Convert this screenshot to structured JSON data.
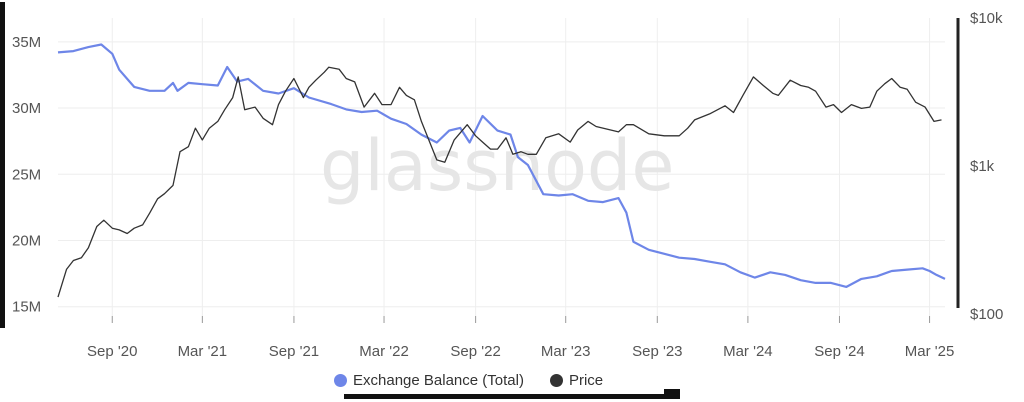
{
  "watermark": "glassnode",
  "legend": {
    "balance_label": "Exchange Balance (Total)",
    "price_label": "Price"
  },
  "colors": {
    "balance": "#6e86e8",
    "price": "#333333",
    "grid": "#eeeeee",
    "axis_line": "#222222"
  },
  "chart_data": {
    "type": "line",
    "x_tick_labels": [
      "Sep '20",
      "Mar '21",
      "Sep '21",
      "Mar '22",
      "Sep '22",
      "Mar '23",
      "Sep '23",
      "Mar '24",
      "Sep '24",
      "Mar '25"
    ],
    "y_left": {
      "tick_labels": [
        "35M",
        "30M",
        "25M",
        "20M",
        "15M"
      ],
      "ticks": [
        35,
        30,
        25,
        20,
        15
      ],
      "range": [
        14.3,
        36.8
      ]
    },
    "y_right": {
      "scale": "log",
      "tick_labels": [
        "$10k",
        "$1k",
        "$100"
      ],
      "ticks": [
        10000,
        1000,
        100
      ],
      "range": [
        100,
        10000
      ]
    },
    "grid": true,
    "legend_position": "bottom",
    "series": [
      {
        "name": "Exchange Balance (Total)",
        "axis": "left",
        "points": [
          [
            "2020-05-15",
            34.2
          ],
          [
            "2020-06-15",
            34.3
          ],
          [
            "2020-07-15",
            34.6
          ],
          [
            "2020-08-10",
            34.8
          ],
          [
            "2020-09-01",
            34.1
          ],
          [
            "2020-09-15",
            32.9
          ],
          [
            "2020-10-15",
            31.6
          ],
          [
            "2020-11-15",
            31.3
          ],
          [
            "2020-12-15",
            31.3
          ],
          [
            "2021-01-01",
            31.9
          ],
          [
            "2021-01-10",
            31.3
          ],
          [
            "2021-02-01",
            31.9
          ],
          [
            "2021-03-01",
            31.8
          ],
          [
            "2021-04-01",
            31.7
          ],
          [
            "2021-04-20",
            33.1
          ],
          [
            "2021-05-10",
            32.0
          ],
          [
            "2021-06-01",
            32.2
          ],
          [
            "2021-07-01",
            31.3
          ],
          [
            "2021-08-01",
            31.1
          ],
          [
            "2021-09-01",
            31.5
          ],
          [
            "2021-10-01",
            30.8
          ],
          [
            "2021-11-15",
            30.3
          ],
          [
            "2021-12-15",
            29.9
          ],
          [
            "2022-01-15",
            29.7
          ],
          [
            "2022-02-15",
            29.8
          ],
          [
            "2022-03-15",
            29.2
          ],
          [
            "2022-04-15",
            28.8
          ],
          [
            "2022-05-15",
            28.0
          ],
          [
            "2022-06-15",
            27.4
          ],
          [
            "2022-07-10",
            28.3
          ],
          [
            "2022-08-01",
            28.5
          ],
          [
            "2022-08-20",
            27.4
          ],
          [
            "2022-09-15",
            29.4
          ],
          [
            "2022-10-15",
            28.3
          ],
          [
            "2022-11-10",
            28.0
          ],
          [
            "2022-11-25",
            26.3
          ],
          [
            "2022-12-15",
            25.7
          ],
          [
            "2023-01-15",
            23.5
          ],
          [
            "2023-02-15",
            23.4
          ],
          [
            "2023-03-15",
            23.5
          ],
          [
            "2023-04-15",
            23.0
          ],
          [
            "2023-05-15",
            22.9
          ],
          [
            "2023-06-15",
            23.2
          ],
          [
            "2023-07-01",
            22.1
          ],
          [
            "2023-07-15",
            19.9
          ],
          [
            "2023-08-15",
            19.3
          ],
          [
            "2023-09-15",
            19.0
          ],
          [
            "2023-10-15",
            18.7
          ],
          [
            "2023-11-15",
            18.6
          ],
          [
            "2023-12-15",
            18.4
          ],
          [
            "2024-01-15",
            18.2
          ],
          [
            "2024-02-15",
            17.6
          ],
          [
            "2024-03-15",
            17.2
          ],
          [
            "2024-04-15",
            17.6
          ],
          [
            "2024-05-15",
            17.4
          ],
          [
            "2024-06-15",
            17.0
          ],
          [
            "2024-07-15",
            16.8
          ],
          [
            "2024-08-15",
            16.8
          ],
          [
            "2024-09-15",
            16.5
          ],
          [
            "2024-10-15",
            17.1
          ],
          [
            "2024-11-15",
            17.3
          ],
          [
            "2024-12-15",
            17.7
          ],
          [
            "2025-01-15",
            17.8
          ],
          [
            "2025-02-15",
            17.9
          ],
          [
            "2025-03-01",
            17.7
          ],
          [
            "2025-03-15",
            17.4
          ],
          [
            "2025-04-01",
            17.1
          ]
        ]
      },
      {
        "name": "Price",
        "axis": "right",
        "points": [
          [
            "2020-05-15",
            130
          ],
          [
            "2020-06-01",
            200
          ],
          [
            "2020-06-15",
            230
          ],
          [
            "2020-07-01",
            240
          ],
          [
            "2020-07-15",
            280
          ],
          [
            "2020-08-01",
            390
          ],
          [
            "2020-08-15",
            430
          ],
          [
            "2020-09-01",
            380
          ],
          [
            "2020-09-15",
            370
          ],
          [
            "2020-10-01",
            350
          ],
          [
            "2020-10-15",
            380
          ],
          [
            "2020-11-01",
            400
          ],
          [
            "2020-11-15",
            480
          ],
          [
            "2020-12-01",
            600
          ],
          [
            "2020-12-15",
            650
          ],
          [
            "2021-01-01",
            740
          ],
          [
            "2021-01-15",
            1250
          ],
          [
            "2021-02-01",
            1350
          ],
          [
            "2021-02-15",
            1800
          ],
          [
            "2021-03-01",
            1500
          ],
          [
            "2021-03-15",
            1800
          ],
          [
            "2021-04-01",
            2000
          ],
          [
            "2021-04-15",
            2400
          ],
          [
            "2021-05-01",
            2900
          ],
          [
            "2021-05-12",
            4000
          ],
          [
            "2021-05-25",
            2400
          ],
          [
            "2021-06-15",
            2500
          ],
          [
            "2021-07-01",
            2100
          ],
          [
            "2021-07-20",
            1900
          ],
          [
            "2021-08-01",
            2600
          ],
          [
            "2021-08-15",
            3200
          ],
          [
            "2021-09-01",
            3900
          ],
          [
            "2021-09-20",
            2900
          ],
          [
            "2021-10-01",
            3400
          ],
          [
            "2021-10-15",
            3800
          ],
          [
            "2021-11-01",
            4300
          ],
          [
            "2021-11-10",
            4650
          ],
          [
            "2021-12-01",
            4500
          ],
          [
            "2021-12-15",
            3900
          ],
          [
            "2022-01-01",
            3700
          ],
          [
            "2022-01-20",
            2500
          ],
          [
            "2022-02-10",
            3100
          ],
          [
            "2022-02-25",
            2600
          ],
          [
            "2022-03-15",
            2600
          ],
          [
            "2022-04-01",
            3400
          ],
          [
            "2022-04-15",
            3000
          ],
          [
            "2022-05-01",
            2800
          ],
          [
            "2022-05-15",
            2000
          ],
          [
            "2022-06-15",
            1100
          ],
          [
            "2022-07-01",
            1060
          ],
          [
            "2022-07-20",
            1500
          ],
          [
            "2022-08-15",
            1900
          ],
          [
            "2022-09-01",
            1600
          ],
          [
            "2022-09-15",
            1450
          ],
          [
            "2022-10-01",
            1300
          ],
          [
            "2022-10-15",
            1300
          ],
          [
            "2022-11-01",
            1550
          ],
          [
            "2022-11-15",
            1200
          ],
          [
            "2022-12-01",
            1250
          ],
          [
            "2022-12-15",
            1200
          ],
          [
            "2023-01-01",
            1200
          ],
          [
            "2023-01-20",
            1550
          ],
          [
            "2023-02-15",
            1650
          ],
          [
            "2023-03-10",
            1450
          ],
          [
            "2023-03-25",
            1750
          ],
          [
            "2023-04-15",
            2000
          ],
          [
            "2023-05-01",
            1850
          ],
          [
            "2023-06-15",
            1700
          ],
          [
            "2023-07-01",
            1900
          ],
          [
            "2023-07-15",
            1900
          ],
          [
            "2023-08-15",
            1650
          ],
          [
            "2023-09-15",
            1600
          ],
          [
            "2023-10-15",
            1600
          ],
          [
            "2023-11-01",
            1800
          ],
          [
            "2023-11-15",
            2050
          ],
          [
            "2023-12-15",
            2250
          ],
          [
            "2024-01-15",
            2550
          ],
          [
            "2024-02-01",
            2300
          ],
          [
            "2024-02-20",
            3000
          ],
          [
            "2024-03-12",
            4000
          ],
          [
            "2024-04-01",
            3500
          ],
          [
            "2024-04-20",
            3100
          ],
          [
            "2024-05-01",
            3000
          ],
          [
            "2024-05-25",
            3800
          ],
          [
            "2024-06-15",
            3500
          ],
          [
            "2024-07-01",
            3400
          ],
          [
            "2024-07-15",
            3200
          ],
          [
            "2024-08-05",
            2500
          ],
          [
            "2024-08-20",
            2600
          ],
          [
            "2024-09-05",
            2300
          ],
          [
            "2024-09-25",
            2600
          ],
          [
            "2024-10-15",
            2450
          ],
          [
            "2024-11-01",
            2500
          ],
          [
            "2024-11-15",
            3200
          ],
          [
            "2024-12-01",
            3600
          ],
          [
            "2024-12-15",
            3900
          ],
          [
            "2025-01-01",
            3400
          ],
          [
            "2025-01-15",
            3300
          ],
          [
            "2025-02-01",
            2700
          ],
          [
            "2025-02-20",
            2500
          ],
          [
            "2025-03-10",
            2000
          ],
          [
            "2025-03-25",
            2050
          ]
        ]
      }
    ]
  }
}
